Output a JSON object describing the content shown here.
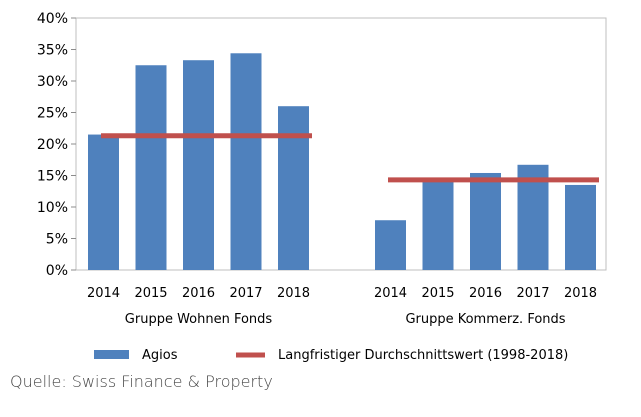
{
  "chart_data": {
    "type": "bar",
    "yaxis": {
      "min": 0,
      "max": 40,
      "step": 5,
      "tick_suffix": "%"
    },
    "grid": false,
    "legend_position": "bottom",
    "groups": [
      {
        "label": "Gruppe Wohnen Fonds",
        "categories": [
          "2014",
          "2015",
          "2016",
          "2017",
          "2018"
        ],
        "values": [
          21.5,
          32.5,
          33.3,
          34.4,
          26.0
        ],
        "average": 21.3
      },
      {
        "label": "Gruppe Kommerz. Fonds",
        "categories": [
          "2014",
          "2015",
          "2016",
          "2017",
          "2018"
        ],
        "values": [
          7.9,
          14.0,
          15.4,
          16.7,
          13.5
        ],
        "average": 14.3
      }
    ],
    "series": [
      {
        "name": "Agios",
        "kind": "bar",
        "color": "#4f81bd"
      },
      {
        "name": "Langfristiger Durchschnittswert (1998-2018)",
        "kind": "line",
        "color": "#c0504d"
      }
    ]
  },
  "source": "Quelle: Swiss Finance & Property"
}
